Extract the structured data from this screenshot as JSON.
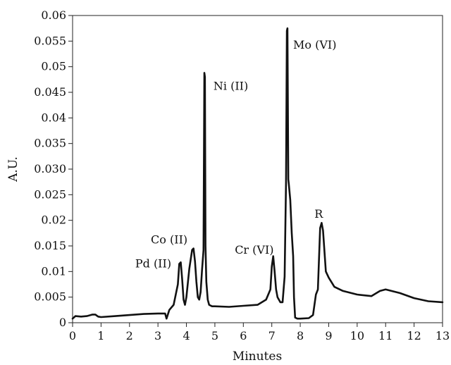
{
  "chart_data": {
    "type": "line",
    "title": "",
    "xlabel": "Minutes",
    "ylabel": "A.U.",
    "xlim": [
      0,
      13
    ],
    "ylim": [
      0,
      0.06
    ],
    "grid": false,
    "x_ticks": [
      "0",
      "1",
      "2",
      "3",
      "4",
      "5",
      "6",
      "7",
      "8",
      "9",
      "10",
      "11",
      "12",
      "13"
    ],
    "y_ticks": [
      "0",
      "0.005",
      "0.01",
      "0.015",
      "0.02",
      "0.025",
      "0.030",
      "0.035",
      "0.04",
      "0.045",
      "0.05",
      "0.055",
      "0.06"
    ],
    "series": [
      {
        "name": "",
        "x": [
          0,
          0.1,
          0.3,
          0.5,
          0.7,
          0.8,
          0.9,
          1.0,
          1.5,
          2.0,
          2.5,
          3.0,
          3.25,
          3.3,
          3.4,
          3.55,
          3.7,
          3.75,
          3.8,
          3.85,
          3.9,
          3.95,
          4.0,
          4.1,
          4.2,
          4.25,
          4.3,
          4.35,
          4.4,
          4.45,
          4.5,
          4.55,
          4.6,
          4.63,
          4.65,
          4.67,
          4.7,
          4.75,
          4.8,
          4.9,
          5.0,
          5.5,
          6.0,
          6.5,
          6.8,
          6.95,
          7.0,
          7.05,
          7.1,
          7.15,
          7.2,
          7.3,
          7.38,
          7.45,
          7.5,
          7.53,
          7.55,
          7.58,
          7.6,
          7.65,
          7.7,
          7.75,
          7.78,
          7.82,
          7.9,
          8.0,
          8.3,
          8.45,
          8.55,
          8.62,
          8.7,
          8.75,
          8.8,
          8.85,
          8.9,
          9.0,
          9.2,
          9.5,
          10.0,
          10.5,
          10.8,
          11.0,
          11.5,
          12.0,
          12.5,
          13.0
        ],
        "values": [
          0.0008,
          0.0013,
          0.0012,
          0.0013,
          0.0016,
          0.0016,
          0.0012,
          0.0011,
          0.0013,
          0.0015,
          0.0017,
          0.0018,
          0.0018,
          0.0008,
          0.0025,
          0.0035,
          0.0075,
          0.0115,
          0.0118,
          0.0085,
          0.0045,
          0.0035,
          0.005,
          0.0105,
          0.0142,
          0.0145,
          0.012,
          0.008,
          0.005,
          0.0045,
          0.006,
          0.0105,
          0.0142,
          0.0488,
          0.048,
          0.015,
          0.008,
          0.0045,
          0.0035,
          0.0032,
          0.0032,
          0.0031,
          0.0033,
          0.0035,
          0.0045,
          0.0065,
          0.011,
          0.013,
          0.01,
          0.0065,
          0.005,
          0.004,
          0.004,
          0.009,
          0.0275,
          0.057,
          0.0575,
          0.028,
          0.027,
          0.024,
          0.0175,
          0.013,
          0.005,
          0.001,
          0.0008,
          0.0008,
          0.0009,
          0.0015,
          0.0055,
          0.0065,
          0.0185,
          0.0195,
          0.018,
          0.014,
          0.01,
          0.0088,
          0.007,
          0.0062,
          0.0055,
          0.0052,
          0.0062,
          0.0065,
          0.0058,
          0.0048,
          0.0042,
          0.004
        ]
      }
    ],
    "annotations": [
      {
        "text": "Pd (II)",
        "x": 2.2,
        "y": 0.0108
      },
      {
        "text": "Co (II)",
        "x": 2.75,
        "y": 0.0155
      },
      {
        "text": "Ni (II)",
        "x": 4.95,
        "y": 0.0455
      },
      {
        "text": "Cr (VI)",
        "x": 5.7,
        "y": 0.0135
      },
      {
        "text": "Mo (VI)",
        "x": 7.75,
        "y": 0.0535
      },
      {
        "text": "R",
        "x": 8.5,
        "y": 0.0205
      }
    ]
  }
}
